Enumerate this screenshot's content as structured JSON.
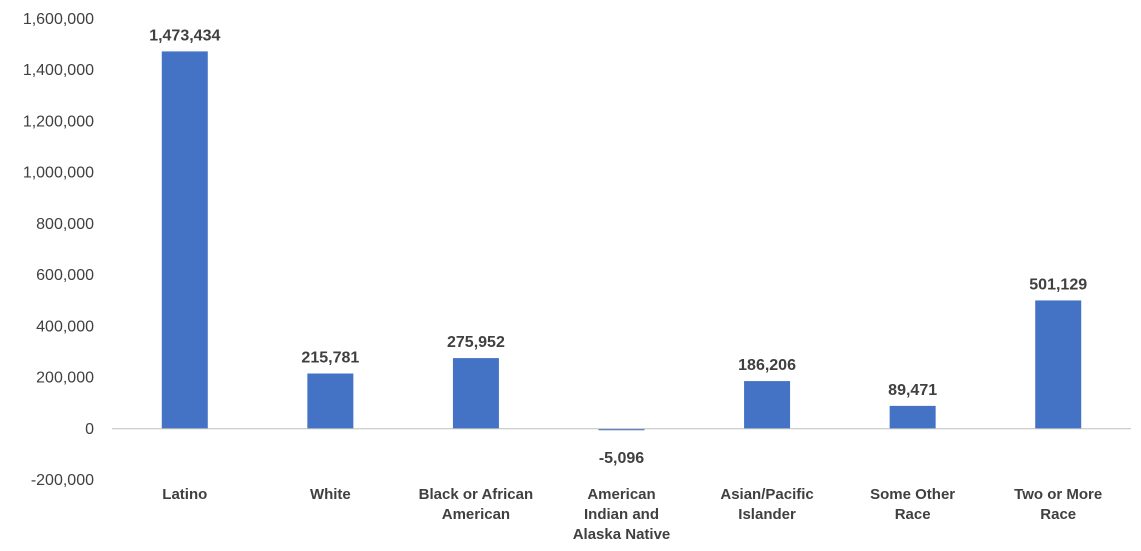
{
  "chart_data": {
    "type": "bar",
    "title": "",
    "xlabel": "",
    "ylabel": "",
    "categories": [
      [
        "Latino"
      ],
      [
        "White"
      ],
      [
        "Black or African",
        "American"
      ],
      [
        "American",
        "Indian and",
        "Alaska Native"
      ],
      [
        "Asian/Pacific",
        "Islander"
      ],
      [
        "Some Other",
        "Race"
      ],
      [
        "Two or More",
        "Race"
      ]
    ],
    "values": [
      1473434,
      215781,
      275952,
      -5096,
      186206,
      89471,
      501129
    ],
    "data_labels": [
      "1,473,434",
      "215,781",
      "275,952",
      "-5,096",
      "186,206",
      "89,471",
      "501,129"
    ],
    "ylim": [
      -200000,
      1600000
    ],
    "yticks": [
      -200000,
      0,
      200000,
      400000,
      600000,
      800000,
      1000000,
      1200000,
      1400000,
      1600000
    ],
    "ytick_labels": [
      "-200,000",
      "0",
      "200,000",
      "400,000",
      "600,000",
      "800,000",
      "1,000,000",
      "1,200,000",
      "1,400,000",
      "1,600,000"
    ],
    "grid": false,
    "legend": "none",
    "bar_color": "#4472C4",
    "text_color": "#404040",
    "axis_color": "#BFBFBF"
  }
}
